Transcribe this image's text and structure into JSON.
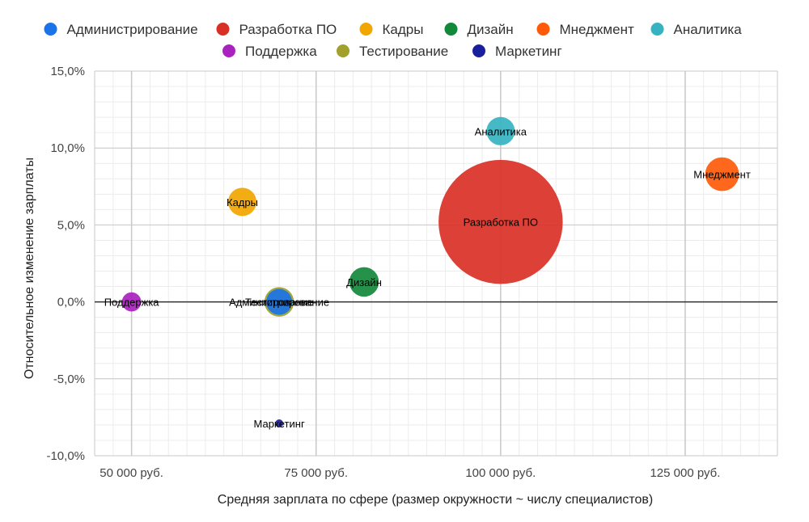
{
  "chart_data": {
    "type": "scatter",
    "subtype": "bubble",
    "xlabel": "Средняя зарплата по сфере (размер окружности ~ числу специалистов)",
    "ylabel": "Относительное изменение зарплаты",
    "xlim": [
      45000,
      137500
    ],
    "ylim": [
      -10,
      15
    ],
    "x_ticks": [
      {
        "value": 50000,
        "label": "50 000 руб."
      },
      {
        "value": 75000,
        "label": "75 000 руб."
      },
      {
        "value": 100000,
        "label": "100 000 руб."
      },
      {
        "value": 125000,
        "label": "125 000 руб."
      }
    ],
    "y_ticks": [
      {
        "value": 15,
        "label": "15,0%"
      },
      {
        "value": 10,
        "label": "10,0%"
      },
      {
        "value": 5,
        "label": "5,0%"
      },
      {
        "value": 0,
        "label": "0,0%"
      },
      {
        "value": -5,
        "label": "-5,0%"
      },
      {
        "value": -10,
        "label": "-10,0%"
      }
    ],
    "grid": true,
    "legend_position": "top",
    "series": [
      {
        "name": "Администрирование",
        "color": "#1a73e8",
        "x": 70000,
        "y": 0.0,
        "size": 1
      },
      {
        "name": "Разработка ПО",
        "color": "#d93025",
        "x": 100000,
        "y": 5.2,
        "size": 23
      },
      {
        "name": "Кадры",
        "color": "#f2a600",
        "x": 65000,
        "y": 6.5,
        "size": 1.2
      },
      {
        "name": "Дизайн",
        "color": "#12883b",
        "x": 81500,
        "y": 1.3,
        "size": 1.3
      },
      {
        "name": "Мнеджмент",
        "color": "#ff5a0a",
        "x": 130000,
        "y": 8.3,
        "size": 1.7
      },
      {
        "name": "Аналитика",
        "color": "#35b3c0",
        "x": 100000,
        "y": 11.1,
        "size": 1.2
      },
      {
        "name": "Поддержка",
        "color": "#a922bf",
        "x": 50000,
        "y": 0.0,
        "size": 0.55
      },
      {
        "name": "Тестирование",
        "color": "#a0a02a",
        "x": 70000,
        "y": 0.0,
        "size": 1.3
      },
      {
        "name": "Маркетинг",
        "color": "#1a1f9e",
        "x": 70000,
        "y": -7.9,
        "size": 0.15
      }
    ]
  }
}
